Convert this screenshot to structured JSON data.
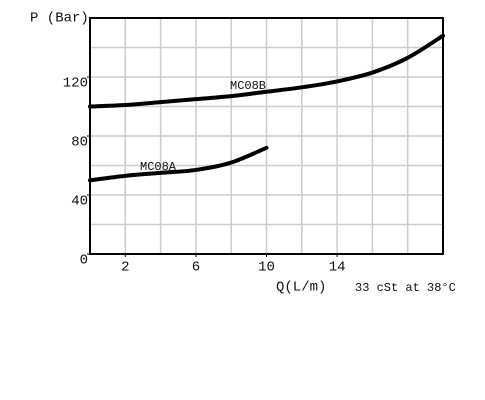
{
  "chart_data": {
    "type": "line",
    "y_label": "P (Bar)",
    "x_label": "Q(L/m)",
    "note": "33 cSt at 38°C",
    "xlim": [
      0,
      20
    ],
    "ylim": [
      0,
      160
    ],
    "xticks": [
      2,
      6,
      10,
      14
    ],
    "yticks": [
      0,
      40,
      80,
      120
    ],
    "x_gridlines": [
      2,
      4,
      6,
      8,
      10,
      12,
      14,
      16,
      18
    ],
    "y_gridlines": [
      20,
      40,
      60,
      80,
      100,
      120,
      140
    ],
    "grid": true,
    "series": [
      {
        "name": "MC08B",
        "color": "#000000",
        "x": [
          0,
          2,
          4,
          6,
          8,
          10,
          12,
          14,
          16,
          18,
          20
        ],
        "values": [
          100,
          101,
          103,
          105,
          107,
          110,
          113,
          117,
          123,
          133,
          148
        ]
      },
      {
        "name": "MC08A",
        "color": "#000000",
        "x": [
          0,
          2,
          4,
          6,
          8,
          10
        ],
        "values": [
          50,
          53,
          55,
          57,
          62,
          72
        ]
      }
    ]
  }
}
